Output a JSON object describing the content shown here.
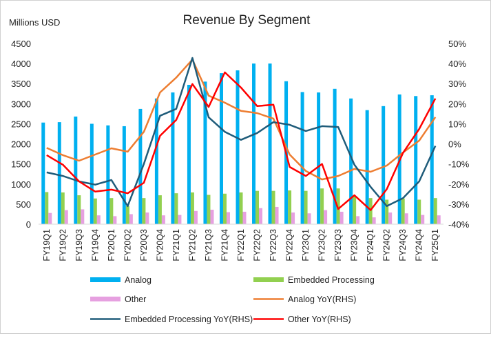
{
  "chart_data": {
    "type": "bar",
    "title": "Revenue By Segment",
    "ylabel": "Millions USD",
    "ylim": [
      0,
      4500
    ],
    "y_ticks": [
      0,
      500,
      1000,
      1500,
      2000,
      2500,
      3000,
      3500,
      4000,
      4500
    ],
    "y2lim": [
      -40,
      50
    ],
    "y2_ticks": [
      "-40%",
      "-30%",
      "-20%",
      "-10%",
      "0%",
      "10%",
      "20%",
      "30%",
      "40%",
      "50%"
    ],
    "legend_position": "bottom",
    "grid": false,
    "categories": [
      "FY19Q1",
      "FY19Q2",
      "FY19Q3",
      "FY19Q4",
      "FY20Q1",
      "FY20Q2",
      "FY20Q3",
      "FY20Q4",
      "FY21Q1",
      "FY21Q2",
      "FY21Q3",
      "FY21Q4",
      "FY22Q1",
      "FY22Q2",
      "FY22Q3",
      "FY22Q4",
      "FY23Q1",
      "FY23Q2",
      "FY23Q3",
      "FY23Q4",
      "FY24Q1",
      "FY24Q2",
      "FY24Q3",
      "FY24Q4",
      "FY25Q1"
    ],
    "series": [
      {
        "name": "Analog",
        "kind": "bar",
        "axis": "left",
        "color": "#00B0F0",
        "values": [
          2530,
          2540,
          2680,
          2500,
          2460,
          2440,
          2870,
          3130,
          3280,
          3470,
          3550,
          3760,
          3830,
          4000,
          4000,
          3560,
          3290,
          3280,
          3370,
          3130,
          2840,
          2940,
          3230,
          3190,
          3210
        ]
      },
      {
        "name": "Embedded Processing",
        "kind": "bar",
        "axis": "left",
        "color": "#92D050",
        "values": [
          800,
          790,
          720,
          640,
          650,
          450,
          650,
          720,
          770,
          790,
          730,
          760,
          790,
          830,
          830,
          840,
          830,
          890,
          890,
          700,
          650,
          610,
          640,
          610,
          650
        ]
      },
      {
        "name": "Other",
        "kind": "bar",
        "axis": "left",
        "color": "#E6A0E0",
        "values": [
          280,
          350,
          370,
          220,
          200,
          250,
          290,
          220,
          230,
          330,
          360,
          300,
          310,
          400,
          430,
          290,
          270,
          350,
          310,
          200,
          170,
          290,
          270,
          230,
          220
        ]
      },
      {
        "name": "Analog YoY(RHS)",
        "kind": "line",
        "axis": "right",
        "color": "#ED7D31",
        "values": [
          -2,
          -5.6,
          -8.4,
          -5.3,
          -2.2,
          -3.9,
          6,
          25.6,
          33,
          42,
          24,
          20.5,
          16.4,
          15.3,
          12.6,
          -5.3,
          -13.5,
          -17.7,
          -16,
          -12.5,
          -13.9,
          -10.8,
          -4.3,
          1.6,
          13.3
        ]
      },
      {
        "name": "Embedded Processing YoY(RHS)",
        "kind": "line",
        "axis": "right",
        "color": "#1F5C7A",
        "values": [
          -14.2,
          -16,
          -18.7,
          -20.3,
          -18,
          -31,
          -10,
          14,
          17.4,
          42.8,
          13.2,
          6,
          2,
          5.4,
          10.8,
          9.5,
          6.4,
          8.8,
          8.4,
          -10.4,
          -21.4,
          -31,
          -27,
          -18.7,
          -1
        ]
      },
      {
        "name": "Other YoY(RHS)",
        "kind": "line",
        "axis": "right",
        "color": "#FF0000",
        "values": [
          -5.6,
          -10.4,
          -18.7,
          -23.8,
          -22.8,
          -24.6,
          -19.4,
          4,
          11.9,
          29.8,
          18.4,
          35.6,
          28,
          18.8,
          19.5,
          -11.5,
          -16,
          -10,
          -32.4,
          -25.6,
          -33,
          -22.5,
          -4.5,
          7.4,
          22.6
        ]
      }
    ]
  }
}
